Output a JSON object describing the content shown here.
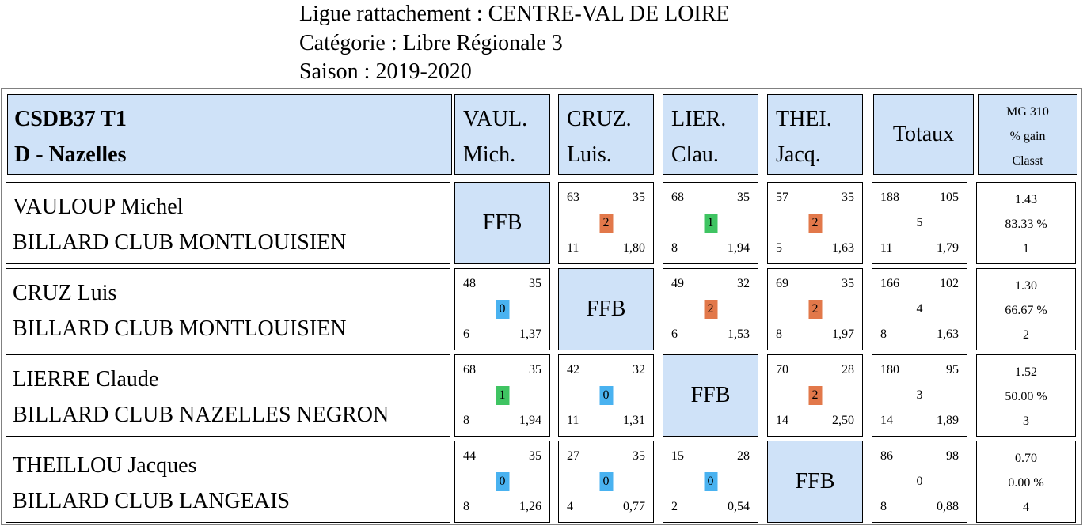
{
  "header": {
    "ligue": "Ligue rattachement : CENTRE-VAL DE LOIRE",
    "categorie": "Catégorie : Libre Régionale 3",
    "saison": "Saison : 2019-2020"
  },
  "corner": {
    "line1": "CSDB37 T1",
    "line2": "D - Nazelles"
  },
  "columns": [
    {
      "line1": "VAUL.",
      "line2": "Mich."
    },
    {
      "line1": "CRUZ.",
      "line2": "Luis."
    },
    {
      "line1": "LIER.",
      "line2": "Clau."
    },
    {
      "line1": "THEI.",
      "line2": "Jacq."
    }
  ],
  "totaux_label": "Totaux",
  "mg_header": {
    "line1": "MG 310",
    "line2": "% gain",
    "line3": "Classt"
  },
  "ffb_label": "FFB",
  "colors": {
    "header_bg": "#cfe2f8",
    "points_2": "#e2784a",
    "points_1": "#3fc462",
    "points_0": "#49b2f0"
  },
  "players": [
    {
      "name": "VAULOUP Michel",
      "club": "BILLARD CLUB MONTLOUISIEN",
      "matches": [
        null,
        {
          "pts": "63",
          "dist": "35",
          "points": "2",
          "reprises": "11",
          "moy": "1,80"
        },
        {
          "pts": "68",
          "dist": "35",
          "points": "1",
          "reprises": "8",
          "moy": "1,94"
        },
        {
          "pts": "57",
          "dist": "35",
          "points": "2",
          "reprises": "5",
          "moy": "1,63"
        }
      ],
      "totals": {
        "pts": "188",
        "dist": "105",
        "points": "5",
        "reprises": "11",
        "moy": "1,79"
      },
      "result": {
        "mg": "1.43",
        "gain": "83.33 %",
        "classt": "1"
      }
    },
    {
      "name": "CRUZ Luis",
      "club": "BILLARD CLUB MONTLOUISIEN",
      "matches": [
        {
          "pts": "48",
          "dist": "35",
          "points": "0",
          "reprises": "6",
          "moy": "1,37"
        },
        null,
        {
          "pts": "49",
          "dist": "32",
          "points": "2",
          "reprises": "6",
          "moy": "1,53"
        },
        {
          "pts": "69",
          "dist": "35",
          "points": "2",
          "reprises": "8",
          "moy": "1,97"
        }
      ],
      "totals": {
        "pts": "166",
        "dist": "102",
        "points": "4",
        "reprises": "8",
        "moy": "1,63"
      },
      "result": {
        "mg": "1.30",
        "gain": "66.67 %",
        "classt": "2"
      }
    },
    {
      "name": "LIERRE Claude",
      "club": "BILLARD CLUB NAZELLES NEGRON",
      "matches": [
        {
          "pts": "68",
          "dist": "35",
          "points": "1",
          "reprises": "8",
          "moy": "1,94"
        },
        {
          "pts": "42",
          "dist": "32",
          "points": "0",
          "reprises": "11",
          "moy": "1,31"
        },
        null,
        {
          "pts": "70",
          "dist": "28",
          "points": "2",
          "reprises": "14",
          "moy": "2,50"
        }
      ],
      "totals": {
        "pts": "180",
        "dist": "95",
        "points": "3",
        "reprises": "14",
        "moy": "1,89"
      },
      "result": {
        "mg": "1.52",
        "gain": "50.00 %",
        "classt": "3"
      }
    },
    {
      "name": "THEILLOU Jacques",
      "club": "BILLARD CLUB LANGEAIS",
      "matches": [
        {
          "pts": "44",
          "dist": "35",
          "points": "0",
          "reprises": "8",
          "moy": "1,26"
        },
        {
          "pts": "27",
          "dist": "35",
          "points": "0",
          "reprises": "4",
          "moy": "0,77"
        },
        {
          "pts": "15",
          "dist": "28",
          "points": "0",
          "reprises": "2",
          "moy": "0,54"
        },
        null
      ],
      "totals": {
        "pts": "86",
        "dist": "98",
        "points": "0",
        "reprises": "8",
        "moy": "0,88"
      },
      "result": {
        "mg": "0.70",
        "gain": "0.00 %",
        "classt": "4"
      }
    }
  ]
}
